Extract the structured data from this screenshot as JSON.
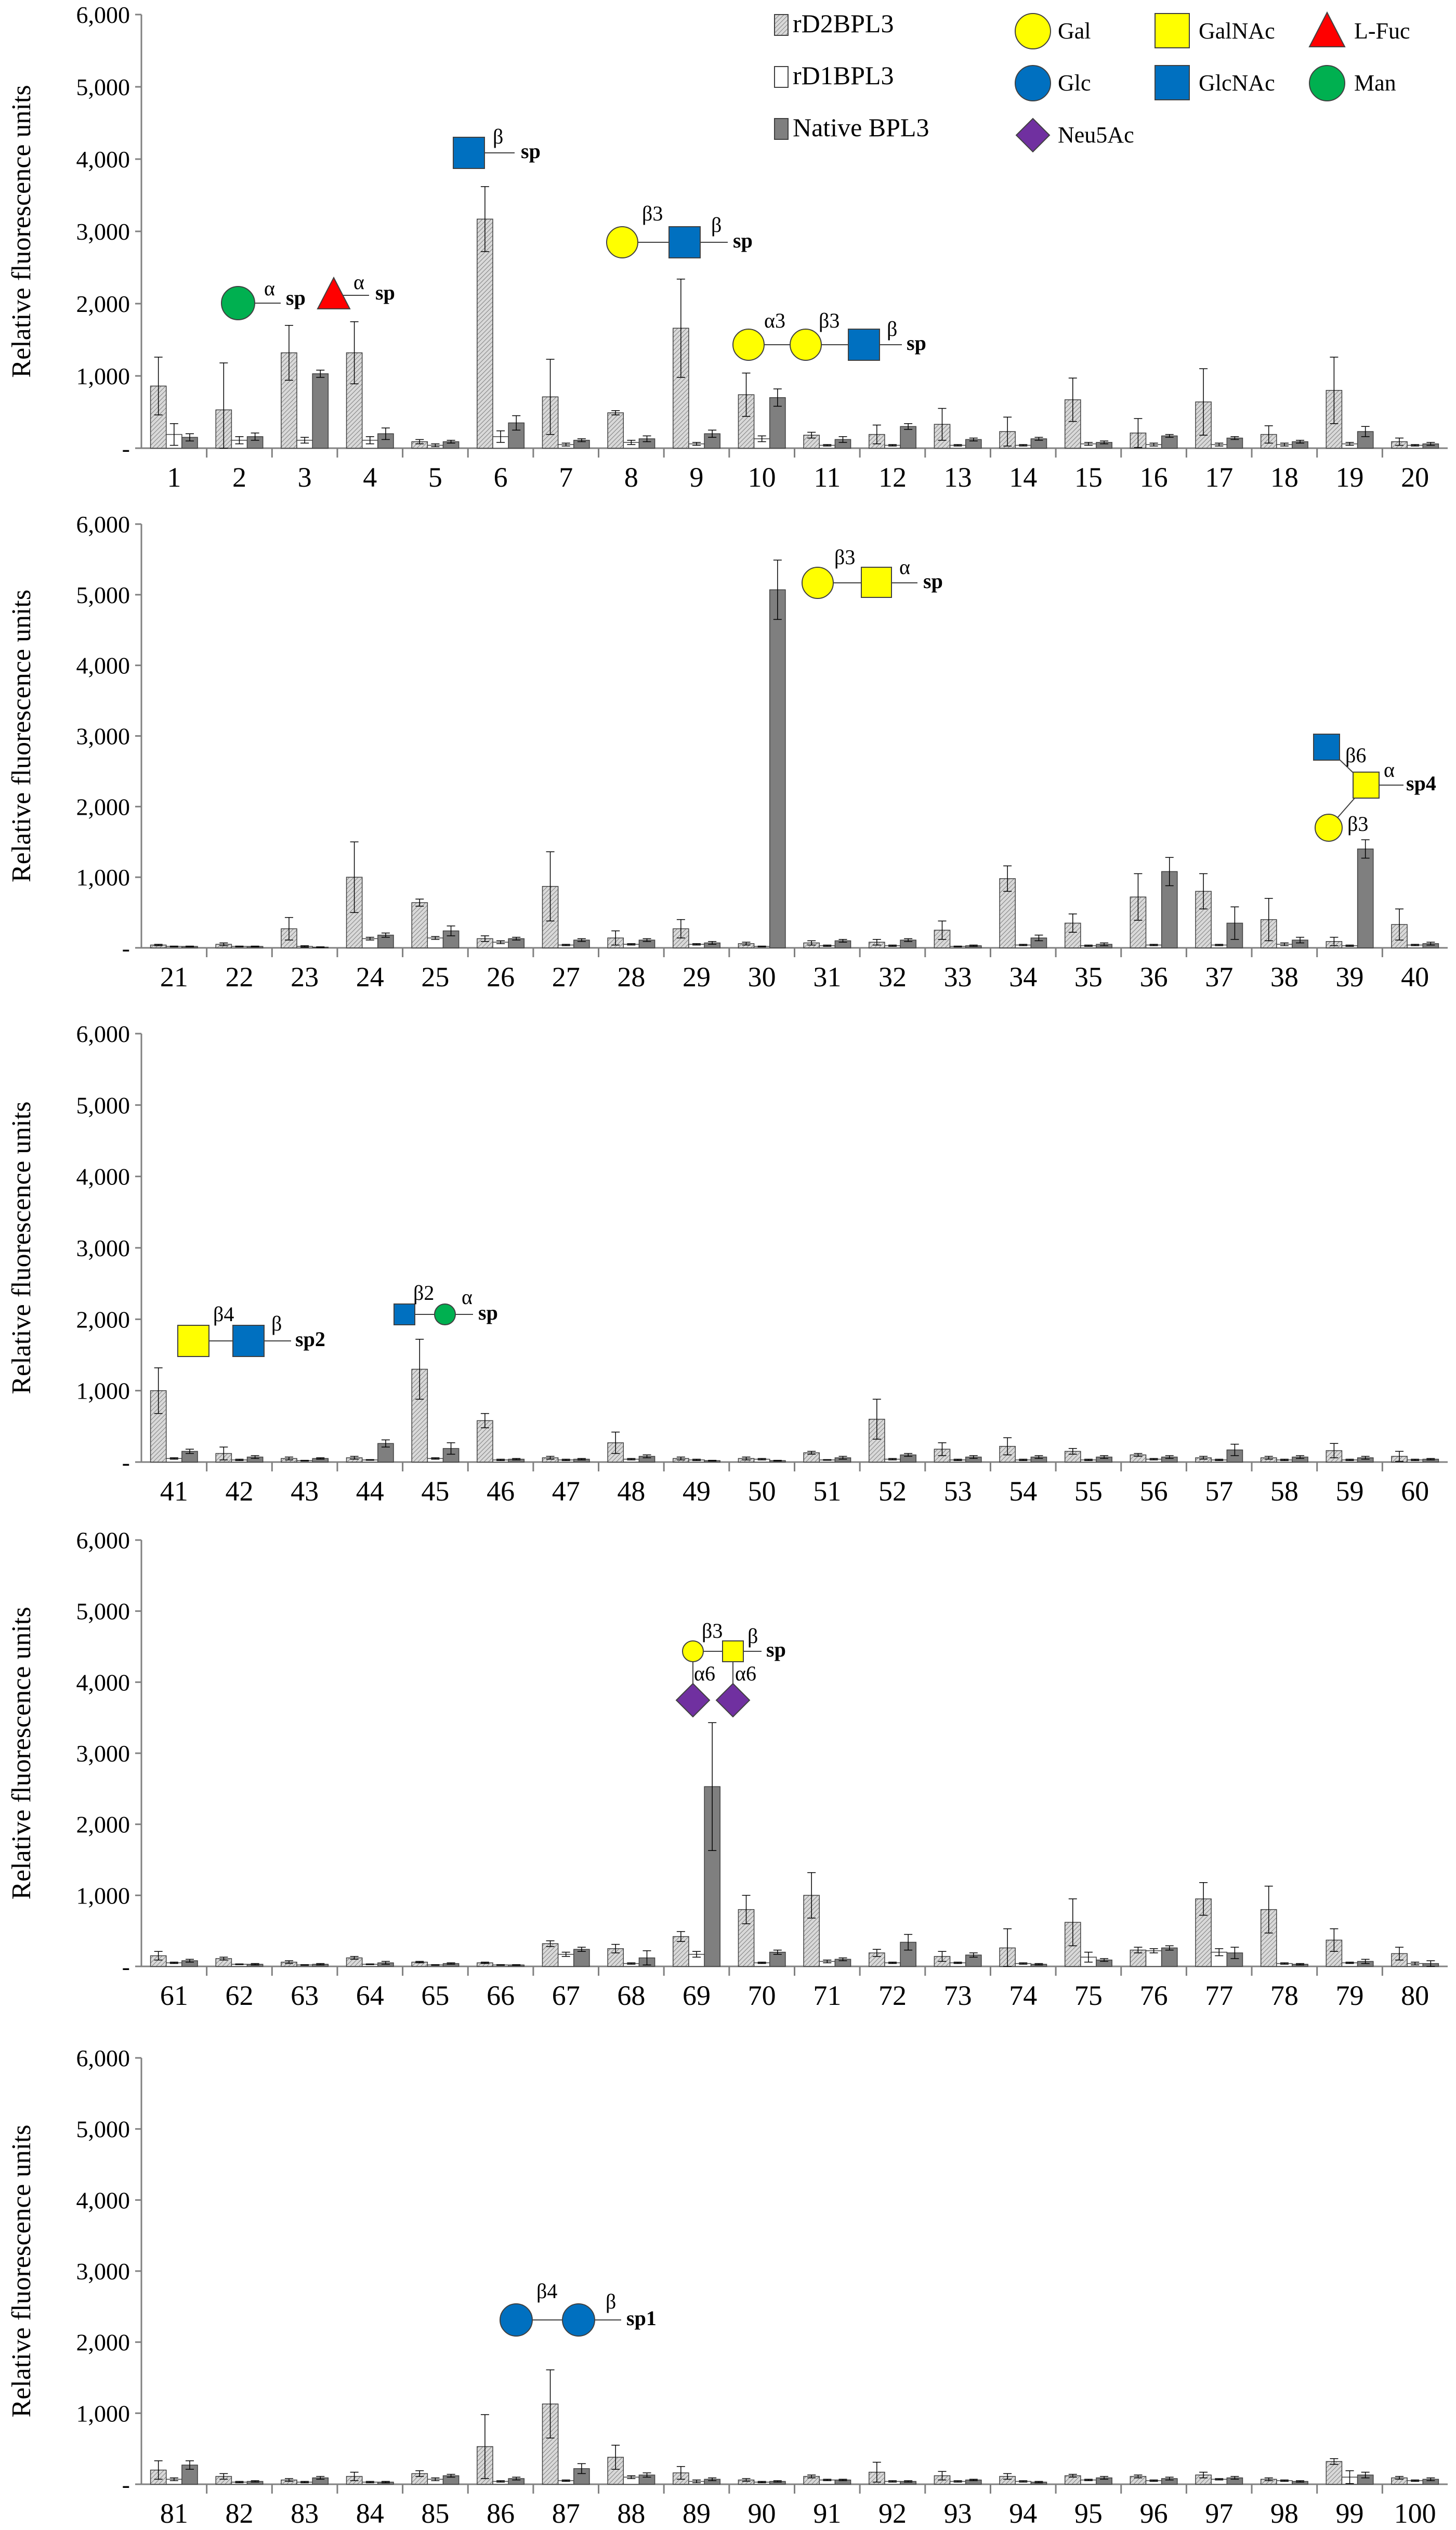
{
  "colors": {
    "rd2_fill": "#d9d9d9",
    "rd1_fill": "#ffffff",
    "native_fill": "#7f7f7f",
    "bar_stroke": "#404040",
    "axis": "#808080",
    "gal": "#ffff00",
    "glc": "#0070c0",
    "galnac": "#ffff00",
    "glcnac": "#0070c0",
    "lfuc": "#ff0000",
    "man": "#00b050",
    "neu5ac": "#7030a0"
  },
  "legend": {
    "series": [
      "rD2BPL3",
      "rD1BPL3",
      "Native BPL3"
    ],
    "symbols": [
      {
        "shape": "circle",
        "color": "gal",
        "label": "Gal"
      },
      {
        "shape": "square",
        "color": "galnac",
        "label": "GalNAc"
      },
      {
        "shape": "triangle",
        "color": "lfuc",
        "label": "L-Fuc"
      },
      {
        "shape": "circle",
        "color": "glc",
        "label": "Glc"
      },
      {
        "shape": "square",
        "color": "glcnac",
        "label": "GlcNAc"
      },
      {
        "shape": "circle",
        "color": "man",
        "label": "Man"
      },
      {
        "shape": "diamond",
        "color": "neu5ac",
        "label": "Neu5Ac"
      }
    ]
  },
  "glycan_labels": {
    "g1_link": "α",
    "g1_sp": "sp",
    "g3_link": "α",
    "g3_sp": "sp",
    "g6_link": "β",
    "g6_sp": "sp",
    "g9_link1": "β3",
    "g9_link2": "β",
    "g9_sp": "sp",
    "g10_link1": "α3",
    "g10_link2": "β3",
    "g10_link3": "β",
    "g10_sp": "sp",
    "g30_link1": "β3",
    "g30_link2": "α",
    "g30_sp": "sp",
    "g39_link1": "β6",
    "g39_link2": "α",
    "g39_link3": "β3",
    "g39_sp": "sp4",
    "g41_link1": "β4",
    "g41_link2": "β",
    "g41_sp": "sp2",
    "g45_link1": "β2",
    "g45_link2": "α",
    "g45_sp": "sp",
    "g69_link1": "β3",
    "g69_link2": "β",
    "g69_link3": "α6",
    "g69_link4": "α6",
    "g69_sp": "sp",
    "g87_link1": "β4",
    "g87_link2": "β",
    "g87_sp": "sp1"
  },
  "chart_data": [
    {
      "type": "bar",
      "ylabel": "Relative fluorescence units",
      "ylim": [
        0,
        6000
      ],
      "yticks": [
        "-",
        "1,000",
        "2,000",
        "3,000",
        "4,000",
        "5,000",
        "6,000"
      ],
      "categories": [
        "1",
        "2",
        "3",
        "4",
        "5",
        "6",
        "7",
        "8",
        "9",
        "10",
        "11",
        "12",
        "13",
        "14",
        "15",
        "16",
        "17",
        "18",
        "19",
        "20"
      ],
      "series": [
        {
          "name": "rD2BPL3",
          "values": [
            860,
            530,
            1320,
            1320,
            90,
            3170,
            710,
            490,
            1660,
            740,
            180,
            190,
            330,
            230,
            670,
            210,
            640,
            190,
            800,
            90
          ],
          "errors": [
            400,
            650,
            380,
            430,
            30,
            450,
            520,
            30,
            680,
            300,
            40,
            130,
            220,
            200,
            300,
            200,
            460,
            120,
            460,
            50
          ]
        },
        {
          "name": "rD1BPL3",
          "values": [
            190,
            110,
            110,
            110,
            40,
            160,
            50,
            80,
            60,
            130,
            40,
            40,
            40,
            40,
            60,
            50,
            50,
            50,
            60,
            40
          ],
          "errors": [
            150,
            50,
            40,
            50,
            20,
            80,
            20,
            30,
            20,
            40,
            10,
            10,
            10,
            10,
            20,
            20,
            20,
            20,
            20,
            10
          ]
        },
        {
          "name": "Native BPL3",
          "values": [
            150,
            160,
            1030,
            200,
            90,
            350,
            110,
            130,
            200,
            700,
            120,
            300,
            120,
            130,
            80,
            170,
            140,
            90,
            230,
            60
          ],
          "errors": [
            50,
            50,
            50,
            80,
            20,
            100,
            20,
            40,
            50,
            120,
            40,
            40,
            20,
            20,
            20,
            20,
            20,
            20,
            70,
            20
          ]
        }
      ]
    },
    {
      "type": "bar",
      "ylabel": "Relative fluorescence units",
      "ylim": [
        0,
        6000
      ],
      "yticks": [
        "-",
        "1,000",
        "2,000",
        "3,000",
        "4,000",
        "5,000",
        "6,000"
      ],
      "categories": [
        "21",
        "22",
        "23",
        "24",
        "25",
        "26",
        "27",
        "28",
        "29",
        "30",
        "31",
        "32",
        "33",
        "34",
        "35",
        "36",
        "37",
        "38",
        "39",
        "40"
      ],
      "series": [
        {
          "name": "rD2BPL3",
          "values": [
            40,
            50,
            270,
            1000,
            640,
            130,
            870,
            140,
            270,
            60,
            70,
            80,
            250,
            980,
            350,
            720,
            800,
            400,
            90,
            330
          ],
          "errors": [
            10,
            20,
            160,
            500,
            50,
            40,
            490,
            100,
            130,
            20,
            30,
            40,
            130,
            180,
            130,
            330,
            250,
            300,
            60,
            220
          ]
        },
        {
          "name": "rD1BPL3",
          "values": [
            20,
            20,
            20,
            130,
            140,
            80,
            40,
            50,
            50,
            20,
            30,
            30,
            20,
            40,
            30,
            40,
            40,
            50,
            30,
            40
          ],
          "errors": [
            5,
            5,
            10,
            20,
            20,
            20,
            10,
            10,
            10,
            5,
            10,
            10,
            5,
            10,
            10,
            10,
            10,
            20,
            10,
            10
          ]
        },
        {
          "name": "Native BPL3",
          "values": [
            20,
            20,
            10,
            180,
            240,
            130,
            110,
            110,
            70,
            5070,
            100,
            110,
            30,
            140,
            50,
            1080,
            350,
            110,
            1400,
            60
          ],
          "errors": [
            5,
            5,
            5,
            30,
            70,
            20,
            20,
            20,
            20,
            420,
            20,
            20,
            10,
            40,
            20,
            200,
            230,
            40,
            130,
            20
          ]
        }
      ]
    },
    {
      "type": "bar",
      "ylabel": "Relative fluorescence units",
      "ylim": [
        0,
        6000
      ],
      "yticks": [
        "-",
        "1,000",
        "2,000",
        "3,000",
        "4,000",
        "5,000",
        "6,000"
      ],
      "categories": [
        "41",
        "42",
        "43",
        "44",
        "45",
        "46",
        "47",
        "48",
        "49",
        "50",
        "51",
        "52",
        "53",
        "54",
        "55",
        "56",
        "57",
        "58",
        "59",
        "60"
      ],
      "series": [
        {
          "name": "rD2BPL3",
          "values": [
            1000,
            120,
            50,
            60,
            1300,
            580,
            60,
            270,
            50,
            50,
            130,
            600,
            180,
            220,
            150,
            100,
            60,
            60,
            160,
            80
          ],
          "errors": [
            320,
            90,
            20,
            20,
            420,
            100,
            20,
            150,
            20,
            20,
            20,
            280,
            90,
            120,
            40,
            20,
            20,
            20,
            100,
            70
          ]
        },
        {
          "name": "rD1BPL3",
          "values": [
            50,
            30,
            20,
            30,
            50,
            30,
            30,
            40,
            30,
            40,
            30,
            40,
            30,
            30,
            30,
            40,
            30,
            30,
            30,
            30
          ],
          "errors": [
            10,
            10,
            5,
            5,
            10,
            10,
            10,
            10,
            10,
            10,
            5,
            10,
            10,
            10,
            10,
            10,
            10,
            10,
            10,
            10
          ]
        },
        {
          "name": "Native BPL3",
          "values": [
            150,
            70,
            50,
            260,
            190,
            40,
            40,
            80,
            20,
            20,
            60,
            100,
            70,
            70,
            70,
            70,
            170,
            70,
            60,
            40
          ],
          "errors": [
            30,
            20,
            10,
            50,
            80,
            10,
            10,
            20,
            5,
            5,
            20,
            20,
            20,
            20,
            20,
            20,
            80,
            20,
            20,
            10
          ]
        }
      ]
    },
    {
      "type": "bar",
      "ylabel": "Relative fluorescence units",
      "ylim": [
        0,
        6000
      ],
      "yticks": [
        "-",
        "1,000",
        "2,000",
        "3,000",
        "4,000",
        "5,000",
        "6,000"
      ],
      "categories": [
        "61",
        "62",
        "63",
        "64",
        "65",
        "66",
        "67",
        "68",
        "69",
        "70",
        "71",
        "72",
        "73",
        "74",
        "75",
        "76",
        "77",
        "78",
        "79",
        "80"
      ],
      "series": [
        {
          "name": "rD2BPL3",
          "values": [
            150,
            110,
            60,
            120,
            60,
            50,
            320,
            250,
            420,
            800,
            1000,
            190,
            140,
            260,
            620,
            230,
            950,
            800,
            370,
            180
          ],
          "errors": [
            60,
            20,
            20,
            20,
            10,
            10,
            40,
            60,
            70,
            200,
            320,
            50,
            70,
            270,
            330,
            40,
            230,
            330,
            160,
            90
          ]
        },
        {
          "name": "rD1BPL3",
          "values": [
            50,
            30,
            20,
            30,
            20,
            20,
            170,
            40,
            170,
            50,
            70,
            50,
            50,
            40,
            130,
            220,
            200,
            40,
            50,
            40
          ],
          "errors": [
            10,
            5,
            5,
            5,
            5,
            5,
            30,
            10,
            40,
            10,
            20,
            10,
            10,
            10,
            70,
            30,
            50,
            10,
            10,
            20
          ]
        },
        {
          "name": "Native BPL3",
          "values": [
            80,
            30,
            30,
            50,
            40,
            20,
            240,
            120,
            2530,
            200,
            100,
            340,
            160,
            30,
            90,
            260,
            190,
            30,
            70,
            40
          ],
          "errors": [
            20,
            10,
            10,
            20,
            10,
            5,
            30,
            100,
            900,
            30,
            20,
            110,
            30,
            10,
            20,
            30,
            80,
            10,
            30,
            40
          ]
        }
      ]
    },
    {
      "type": "bar",
      "ylabel": "Relative fluorescence units",
      "ylim": [
        0,
        6000
      ],
      "yticks": [
        "-",
        "1,000",
        "2,000",
        "3,000",
        "4,000",
        "5,000",
        "6,000"
      ],
      "categories": [
        "81",
        "82",
        "83",
        "84",
        "85",
        "86",
        "87",
        "88",
        "89",
        "90",
        "91",
        "92",
        "93",
        "94",
        "95",
        "96",
        "97",
        "98",
        "99",
        "100"
      ],
      "series": [
        {
          "name": "rD2BPL3",
          "values": [
            200,
            110,
            60,
            110,
            150,
            530,
            1130,
            380,
            160,
            60,
            110,
            170,
            120,
            110,
            120,
            110,
            130,
            70,
            320,
            90
          ],
          "errors": [
            130,
            40,
            20,
            60,
            40,
            450,
            480,
            170,
            90,
            20,
            20,
            140,
            60,
            40,
            20,
            20,
            40,
            20,
            40,
            20
          ]
        },
        {
          "name": "rD1BPL3",
          "values": [
            70,
            30,
            30,
            30,
            70,
            40,
            50,
            100,
            40,
            30,
            60,
            40,
            40,
            40,
            60,
            50,
            70,
            50,
            100,
            50
          ],
          "errors": [
            20,
            10,
            10,
            10,
            20,
            10,
            10,
            20,
            20,
            10,
            10,
            10,
            10,
            10,
            10,
            10,
            10,
            10,
            90,
            10
          ]
        },
        {
          "name": "Native BPL3",
          "values": [
            270,
            40,
            90,
            30,
            120,
            80,
            220,
            130,
            70,
            40,
            60,
            40,
            60,
            30,
            90,
            80,
            90,
            40,
            130,
            70
          ],
          "errors": [
            60,
            10,
            20,
            10,
            20,
            20,
            70,
            30,
            20,
            10,
            10,
            10,
            10,
            10,
            20,
            20,
            20,
            10,
            40,
            20
          ]
        }
      ]
    }
  ]
}
